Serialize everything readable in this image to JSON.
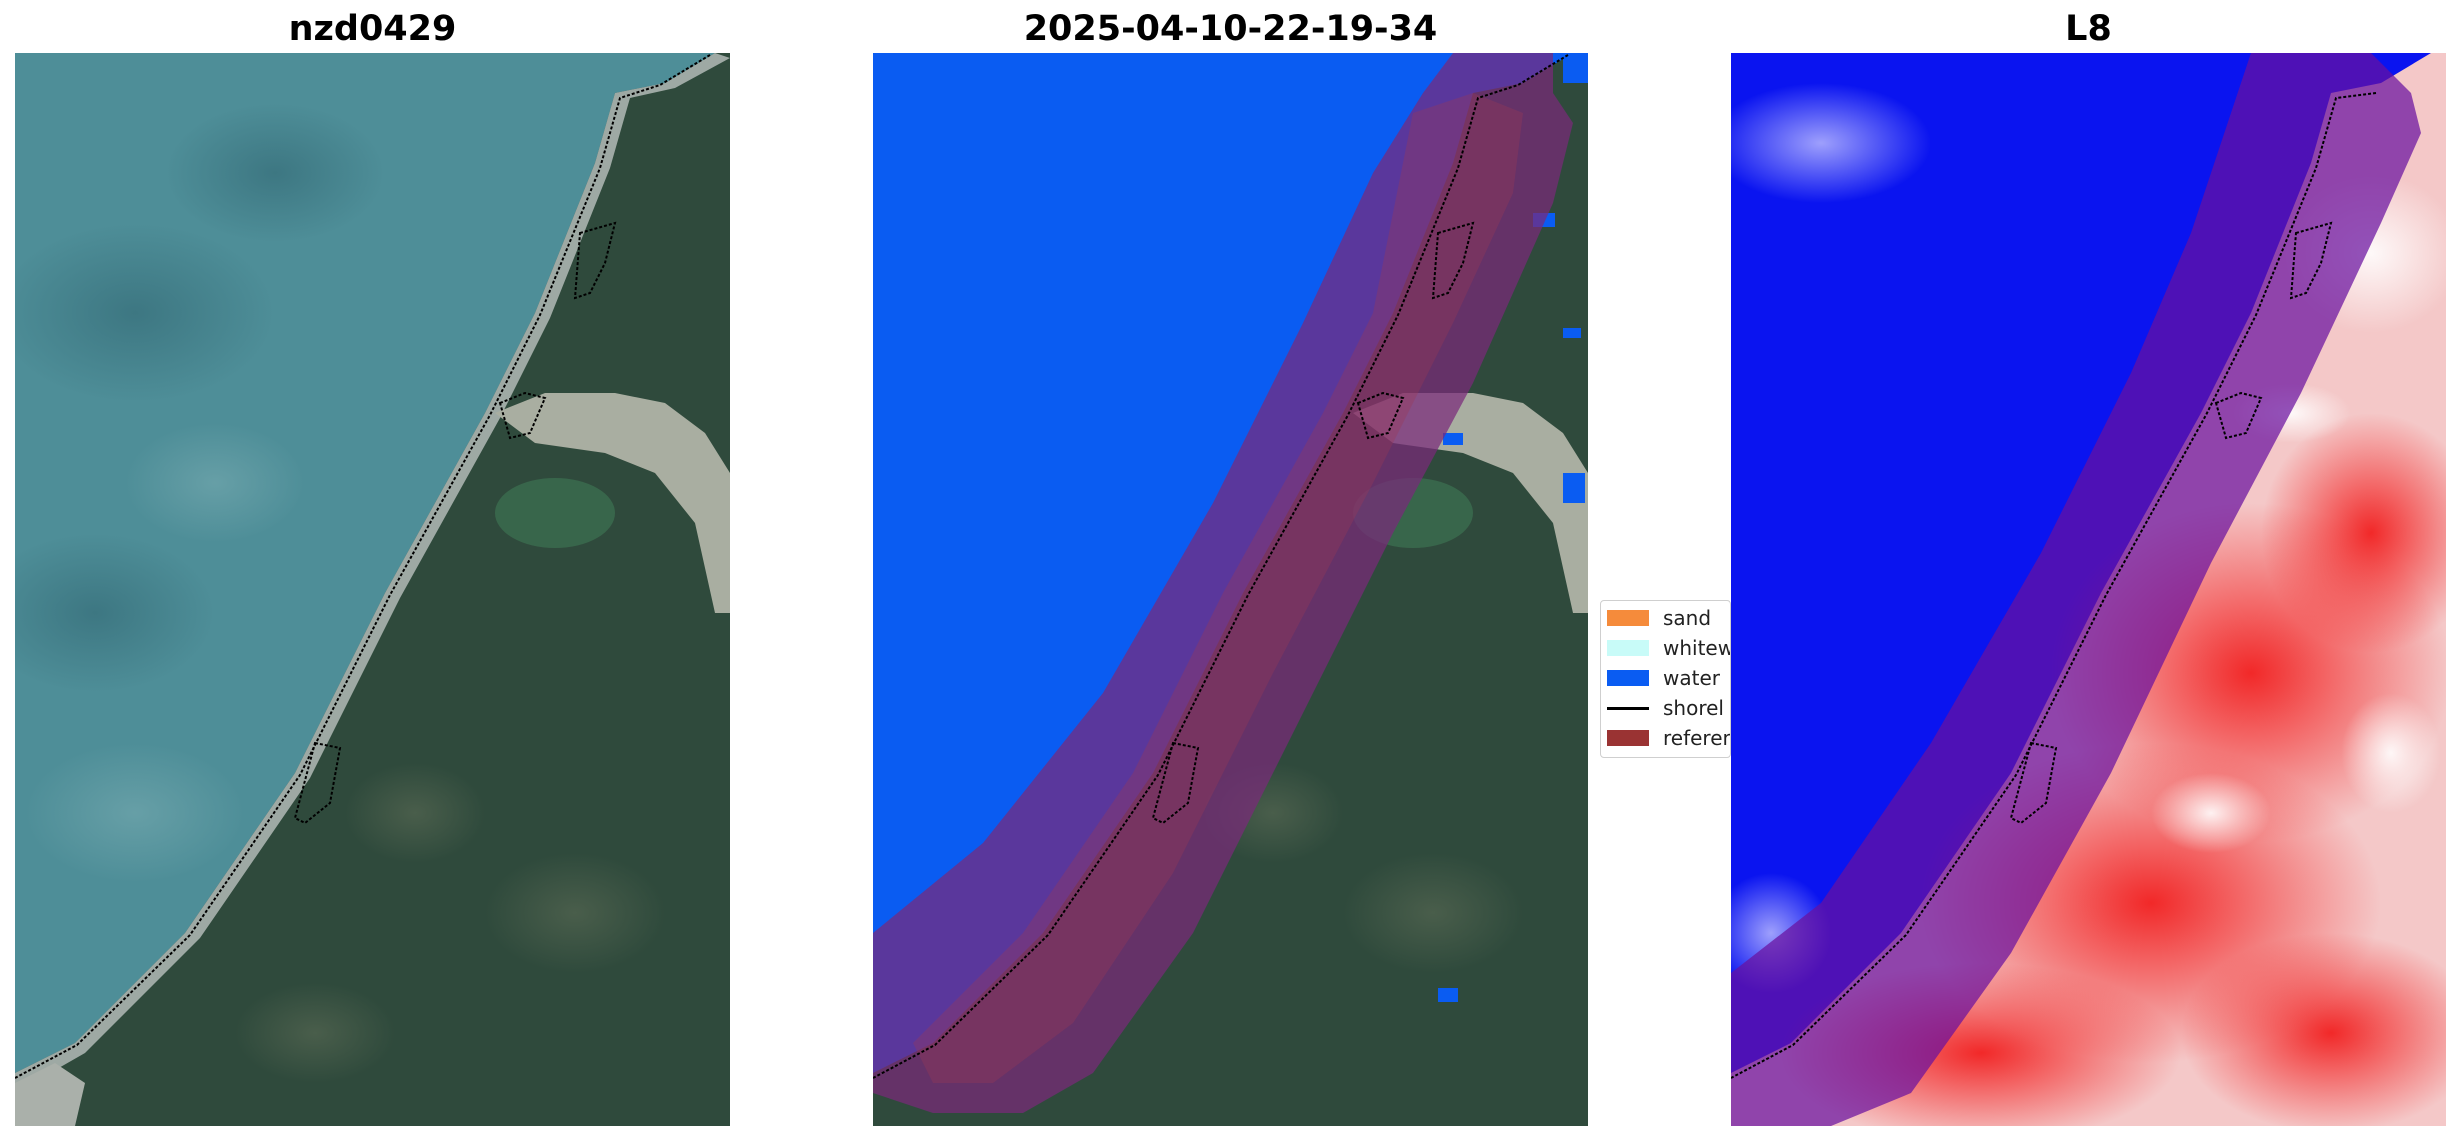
{
  "panels": [
    {
      "title": "nzd0429"
    },
    {
      "title": "2025-04-10-22-19-34"
    },
    {
      "title": "L8"
    }
  ],
  "legend": {
    "items": [
      {
        "label": "sand",
        "color": "#f58b3b"
      },
      {
        "label": "whitew",
        "color": "#c8fbf8"
      },
      {
        "label": "water",
        "color": "#0a5cf2"
      },
      {
        "label": "shorel",
        "color": "#000000"
      },
      {
        "label": "referen",
        "color": "#9a3333"
      }
    ]
  },
  "colors": {
    "ocean": "#4e8e98",
    "land": "#2f4a3c",
    "classified_water": "#0a5cf2",
    "buffer_overlay": "#7a2a7a",
    "index_water": "#0a14f0",
    "index_land": "#f23030"
  }
}
